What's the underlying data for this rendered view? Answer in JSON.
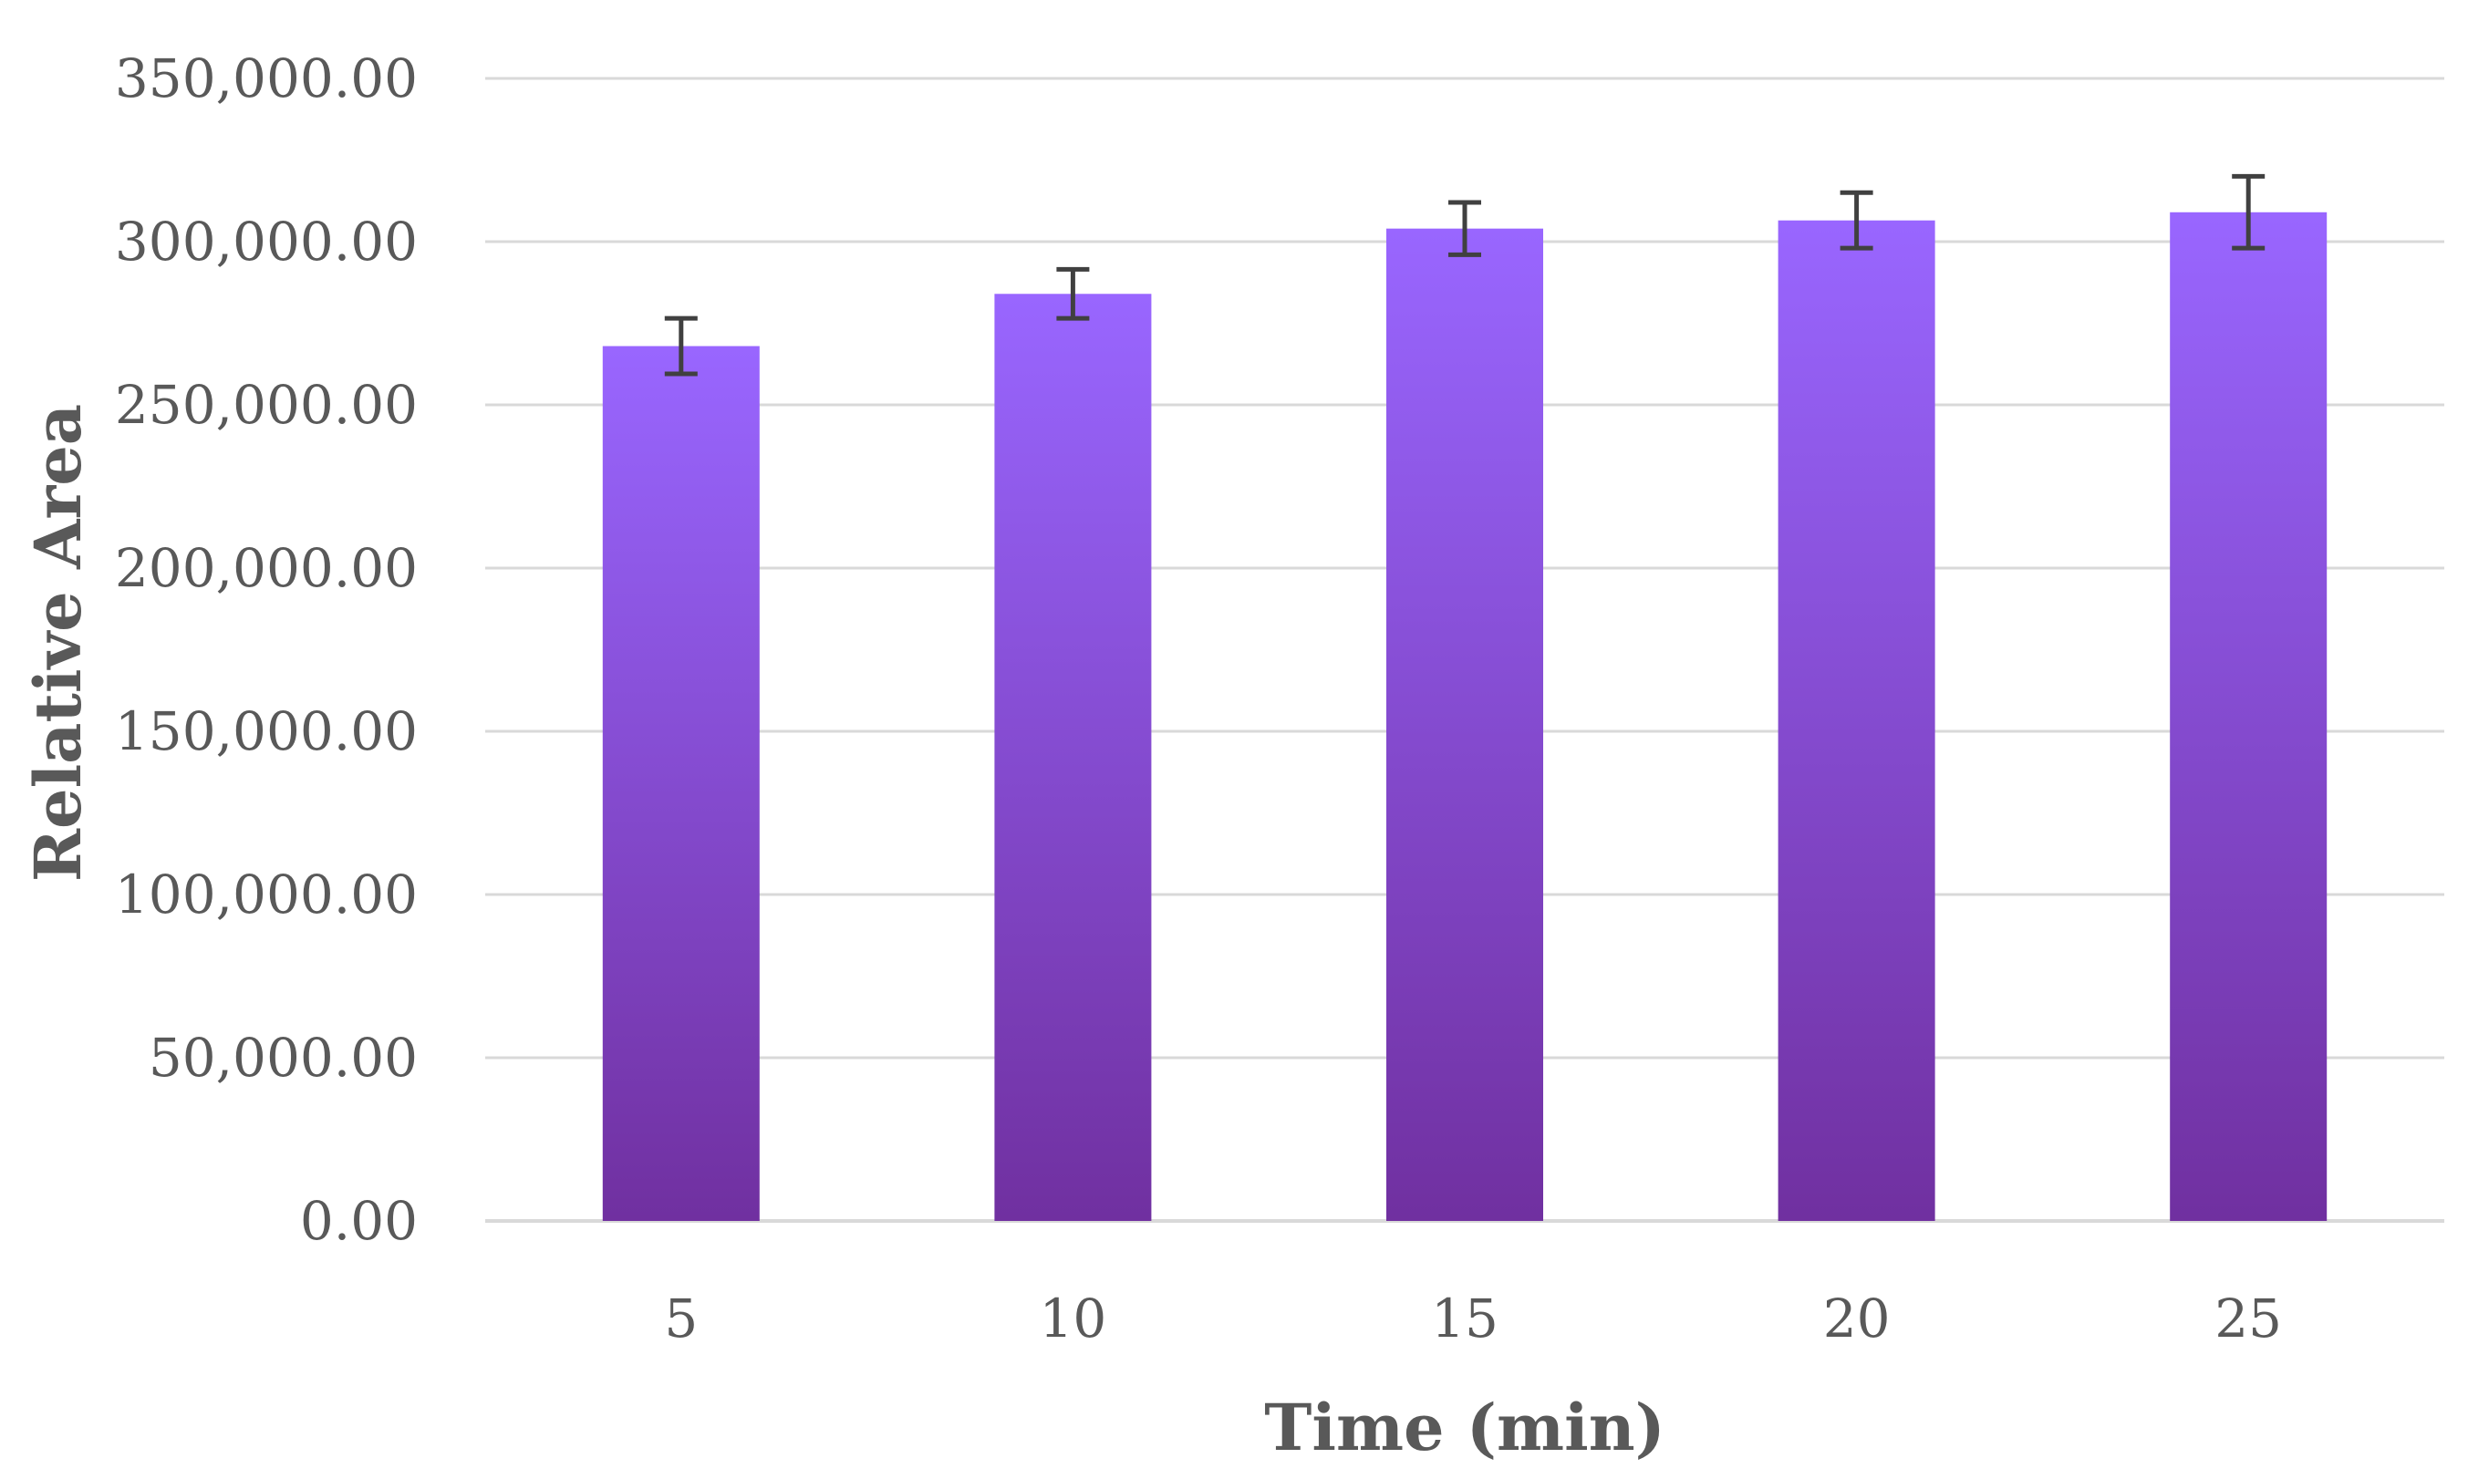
{
  "chart_data": {
    "type": "bar",
    "title": "",
    "xlabel": "Time (min)",
    "ylabel": "Relative Area",
    "categories": [
      "5",
      "10",
      "15",
      "20",
      "25"
    ],
    "series": [
      {
        "values": [
          268000,
          284000,
          304000,
          306500,
          309000
        ],
        "error": [
          8500,
          7500,
          8000,
          8500,
          11000
        ]
      }
    ],
    "ylim": [
      0,
      350000
    ],
    "yticks": [
      0,
      50000,
      100000,
      150000,
      200000,
      250000,
      300000,
      350000
    ],
    "ytick_labels": [
      "0.00",
      "50,000.00",
      "100,000.00",
      "150,000.00",
      "200,000.00",
      "250,000.00",
      "300,000.00",
      "350,000.00"
    ],
    "grid": true,
    "legend": "none",
    "colors": {
      "bar_top": "#9966ff",
      "bar_bottom": "#7030a0",
      "error_bar": "#404040",
      "gridline": "#d9d9d9",
      "text": "#595959"
    }
  }
}
